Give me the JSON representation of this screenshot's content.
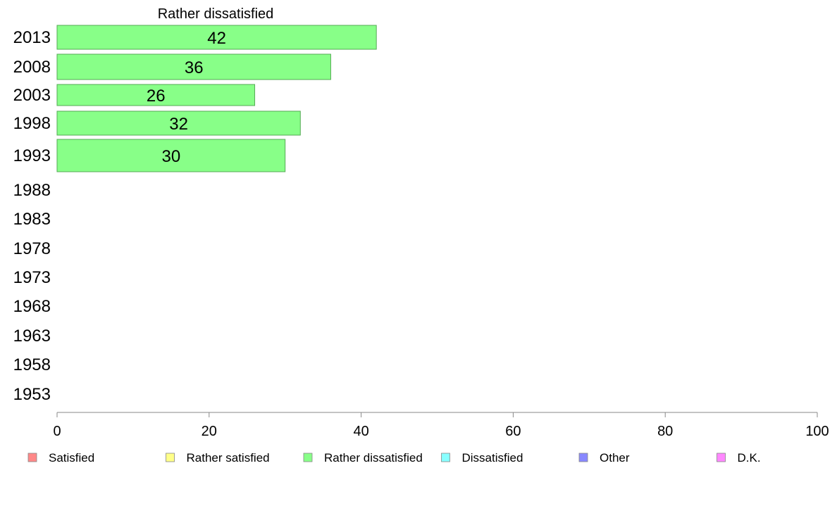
{
  "chart_data": {
    "type": "bar",
    "orientation": "horizontal",
    "title": "Rather dissatisfied",
    "categories": [
      "2013",
      "2008",
      "2003",
      "1998",
      "1993",
      "1988",
      "1983",
      "1978",
      "1973",
      "1968",
      "1963",
      "1958",
      "1953"
    ],
    "series": [
      {
        "name": "Rather dissatisfied",
        "color": "#88ff88",
        "values": [
          42,
          36,
          26,
          32,
          30,
          null,
          null,
          null,
          null,
          null,
          null,
          null,
          null
        ]
      }
    ],
    "xlim": [
      0,
      100
    ],
    "xticks": [
      0,
      20,
      40,
      60,
      80,
      100
    ],
    "xlabel": "",
    "ylabel": "",
    "grid": false,
    "legend": {
      "placement": "bottom",
      "entries": [
        {
          "label": "Satisfied",
          "color": "#ff8888"
        },
        {
          "label": "Rather satisfied",
          "color": "#ffff88"
        },
        {
          "label": "Rather dissatisfied",
          "color": "#88ff88"
        },
        {
          "label": "Dissatisfied",
          "color": "#88ffff"
        },
        {
          "label": "Other",
          "color": "#8888ff"
        },
        {
          "label": "D.K.",
          "color": "#ff88ff"
        }
      ]
    }
  }
}
